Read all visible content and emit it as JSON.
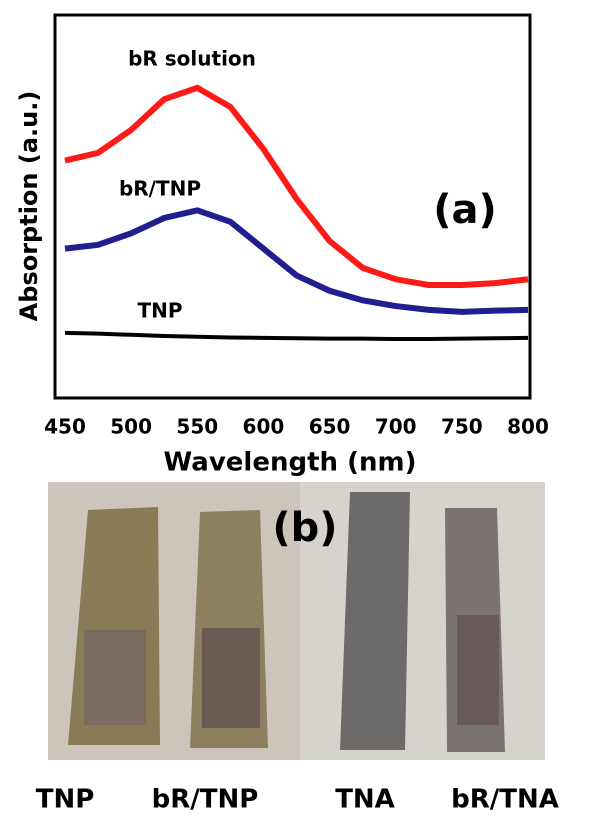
{
  "chart_data": {
    "type": "line",
    "annotation": "(a)",
    "x_label": "Wavelength (nm)",
    "y_label": "Absorption (a.u.)",
    "x": [
      450,
      475,
      500,
      525,
      550,
      575,
      600,
      625,
      650,
      675,
      700,
      725,
      750,
      775,
      800
    ],
    "xlim": [
      450,
      800
    ],
    "xticks": [
      450,
      500,
      550,
      600,
      650,
      700,
      750,
      800
    ],
    "ylim": [
      0,
      1
    ],
    "series": [
      {
        "name": "bR solution",
        "color": "#ff1a1a",
        "values": [
          0.62,
          0.64,
          0.7,
          0.78,
          0.81,
          0.76,
          0.65,
          0.52,
          0.41,
          0.34,
          0.31,
          0.295,
          0.295,
          0.3,
          0.31
        ]
      },
      {
        "name": "bR/TNP",
        "color": "#1f1f8f",
        "values": [
          0.39,
          0.4,
          0.43,
          0.47,
          0.49,
          0.46,
          0.39,
          0.32,
          0.28,
          0.255,
          0.24,
          0.23,
          0.225,
          0.228,
          0.23
        ]
      },
      {
        "name": "TNP",
        "color": "#000000",
        "values": [
          0.17,
          0.168,
          0.165,
          0.162,
          0.16,
          0.158,
          0.157,
          0.156,
          0.155,
          0.155,
          0.154,
          0.154,
          0.155,
          0.156,
          0.157
        ]
      }
    ]
  },
  "photo": {
    "label": "(b)",
    "samples": [
      "TNP",
      "bR/TNP",
      "TNA",
      "bR/TNA"
    ]
  }
}
